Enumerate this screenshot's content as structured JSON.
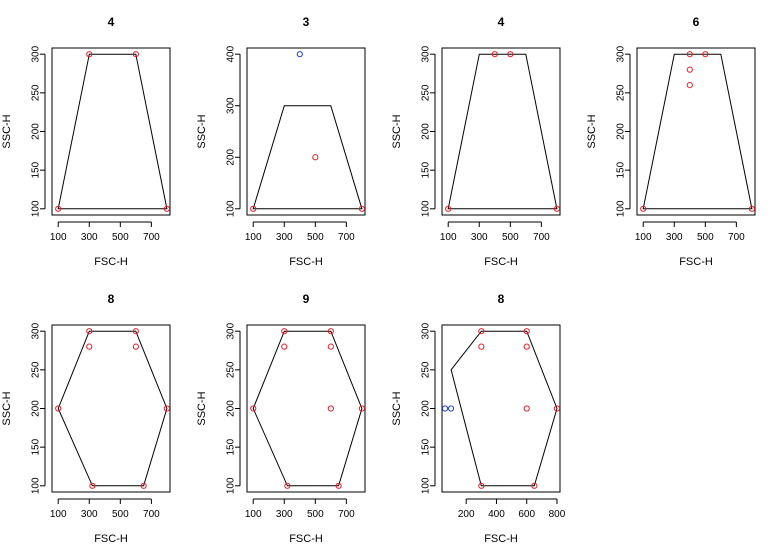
{
  "chart_data": [
    {
      "type": "scatter",
      "title": "4",
      "xlabel": "FSC-H",
      "ylabel": "SSC-H",
      "xlim": [
        60,
        820
      ],
      "ylim": [
        92,
        308
      ],
      "xticks": [
        100,
        300,
        500,
        700
      ],
      "yticks": [
        100,
        150,
        200,
        250,
        300
      ],
      "polygon": [
        [
          100,
          100
        ],
        [
          300,
          300
        ],
        [
          600,
          300
        ],
        [
          800,
          100
        ]
      ],
      "points": [
        {
          "x": 100,
          "y": 100,
          "color": "red"
        },
        {
          "x": 300,
          "y": 300,
          "color": "red"
        },
        {
          "x": 600,
          "y": 300,
          "color": "red"
        },
        {
          "x": 800,
          "y": 100,
          "color": "red"
        }
      ]
    },
    {
      "type": "scatter",
      "title": "3",
      "xlabel": "FSC-H",
      "ylabel": "SSC-H",
      "xlim": [
        60,
        820
      ],
      "ylim": [
        88,
        412
      ],
      "xticks": [
        100,
        300,
        500,
        700
      ],
      "yticks": [
        100,
        200,
        300,
        400
      ],
      "polygon": [
        [
          100,
          100
        ],
        [
          300,
          300
        ],
        [
          600,
          300
        ],
        [
          800,
          100
        ]
      ],
      "points": [
        {
          "x": 400,
          "y": 400,
          "color": "blue"
        },
        {
          "x": 500,
          "y": 200,
          "color": "red"
        },
        {
          "x": 100,
          "y": 100,
          "color": "red"
        },
        {
          "x": 800,
          "y": 100,
          "color": "red"
        }
      ]
    },
    {
      "type": "scatter",
      "title": "4",
      "xlabel": "FSC-H",
      "ylabel": "SSC-H",
      "xlim": [
        60,
        820
      ],
      "ylim": [
        92,
        308
      ],
      "xticks": [
        100,
        300,
        500,
        700
      ],
      "yticks": [
        100,
        150,
        200,
        250,
        300
      ],
      "polygon": [
        [
          100,
          100
        ],
        [
          300,
          300
        ],
        [
          600,
          300
        ],
        [
          800,
          100
        ]
      ],
      "points": [
        {
          "x": 400,
          "y": 300,
          "color": "red"
        },
        {
          "x": 500,
          "y": 300,
          "color": "red"
        },
        {
          "x": 100,
          "y": 100,
          "color": "red"
        },
        {
          "x": 800,
          "y": 100,
          "color": "red"
        }
      ]
    },
    {
      "type": "scatter",
      "title": "6",
      "xlabel": "FSC-H",
      "ylabel": "SSC-H",
      "xlim": [
        60,
        820
      ],
      "ylim": [
        92,
        308
      ],
      "xticks": [
        100,
        300,
        500,
        700
      ],
      "yticks": [
        100,
        150,
        200,
        250,
        300
      ],
      "polygon": [
        [
          100,
          100
        ],
        [
          300,
          300
        ],
        [
          600,
          300
        ],
        [
          800,
          100
        ]
      ],
      "points": [
        {
          "x": 400,
          "y": 300,
          "color": "red"
        },
        {
          "x": 500,
          "y": 300,
          "color": "red"
        },
        {
          "x": 400,
          "y": 280,
          "color": "red"
        },
        {
          "x": 400,
          "y": 260,
          "color": "red"
        },
        {
          "x": 100,
          "y": 100,
          "color": "red"
        },
        {
          "x": 800,
          "y": 100,
          "color": "red"
        }
      ]
    },
    {
      "type": "scatter",
      "title": "8",
      "xlabel": "FSC-H",
      "ylabel": "SSC-H",
      "xlim": [
        60,
        820
      ],
      "ylim": [
        92,
        308
      ],
      "xticks": [
        100,
        300,
        500,
        700
      ],
      "yticks": [
        100,
        150,
        200,
        250,
        300
      ],
      "polygon": [
        [
          100,
          200
        ],
        [
          300,
          300
        ],
        [
          600,
          300
        ],
        [
          800,
          200
        ],
        [
          650,
          100
        ],
        [
          320,
          100
        ]
      ],
      "points": [
        {
          "x": 300,
          "y": 300,
          "color": "red"
        },
        {
          "x": 600,
          "y": 300,
          "color": "red"
        },
        {
          "x": 300,
          "y": 280,
          "color": "red"
        },
        {
          "x": 600,
          "y": 280,
          "color": "red"
        },
        {
          "x": 100,
          "y": 200,
          "color": "red"
        },
        {
          "x": 800,
          "y": 200,
          "color": "red"
        },
        {
          "x": 320,
          "y": 100,
          "color": "red"
        },
        {
          "x": 650,
          "y": 100,
          "color": "red"
        }
      ]
    },
    {
      "type": "scatter",
      "title": "9",
      "xlabel": "FSC-H",
      "ylabel": "SSC-H",
      "xlim": [
        60,
        820
      ],
      "ylim": [
        92,
        308
      ],
      "xticks": [
        100,
        300,
        500,
        700
      ],
      "yticks": [
        100,
        150,
        200,
        250,
        300
      ],
      "polygon": [
        [
          100,
          200
        ],
        [
          300,
          300
        ],
        [
          600,
          300
        ],
        [
          800,
          200
        ],
        [
          650,
          100
        ],
        [
          320,
          100
        ]
      ],
      "points": [
        {
          "x": 300,
          "y": 300,
          "color": "red"
        },
        {
          "x": 600,
          "y": 300,
          "color": "red"
        },
        {
          "x": 300,
          "y": 280,
          "color": "red"
        },
        {
          "x": 600,
          "y": 280,
          "color": "red"
        },
        {
          "x": 600,
          "y": 200,
          "color": "red"
        },
        {
          "x": 100,
          "y": 200,
          "color": "red"
        },
        {
          "x": 800,
          "y": 200,
          "color": "red"
        },
        {
          "x": 320,
          "y": 100,
          "color": "red"
        },
        {
          "x": 650,
          "y": 100,
          "color": "red"
        }
      ]
    },
    {
      "type": "scatter",
      "title": "8",
      "xlabel": "FSC-H",
      "ylabel": "SSC-H",
      "xlim": [
        40,
        820
      ],
      "ylim": [
        92,
        308
      ],
      "xticks": [
        200,
        400,
        600,
        800
      ],
      "yticks": [
        100,
        150,
        200,
        250,
        300
      ],
      "polygon": [
        [
          100,
          250
        ],
        [
          300,
          300
        ],
        [
          600,
          300
        ],
        [
          800,
          200
        ],
        [
          650,
          100
        ],
        [
          300,
          100
        ]
      ],
      "points": [
        {
          "x": 60,
          "y": 200,
          "color": "blue"
        },
        {
          "x": 100,
          "y": 200,
          "color": "blue"
        },
        {
          "x": 300,
          "y": 300,
          "color": "red"
        },
        {
          "x": 600,
          "y": 300,
          "color": "red"
        },
        {
          "x": 300,
          "y": 280,
          "color": "red"
        },
        {
          "x": 600,
          "y": 280,
          "color": "red"
        },
        {
          "x": 600,
          "y": 200,
          "color": "red"
        },
        {
          "x": 800,
          "y": 200,
          "color": "red"
        },
        {
          "x": 300,
          "y": 100,
          "color": "red"
        },
        {
          "x": 650,
          "y": 100,
          "color": "red"
        }
      ]
    }
  ],
  "colors": {
    "red": "#e8202a",
    "blue": "#1f3fd8",
    "line": "#000000"
  }
}
